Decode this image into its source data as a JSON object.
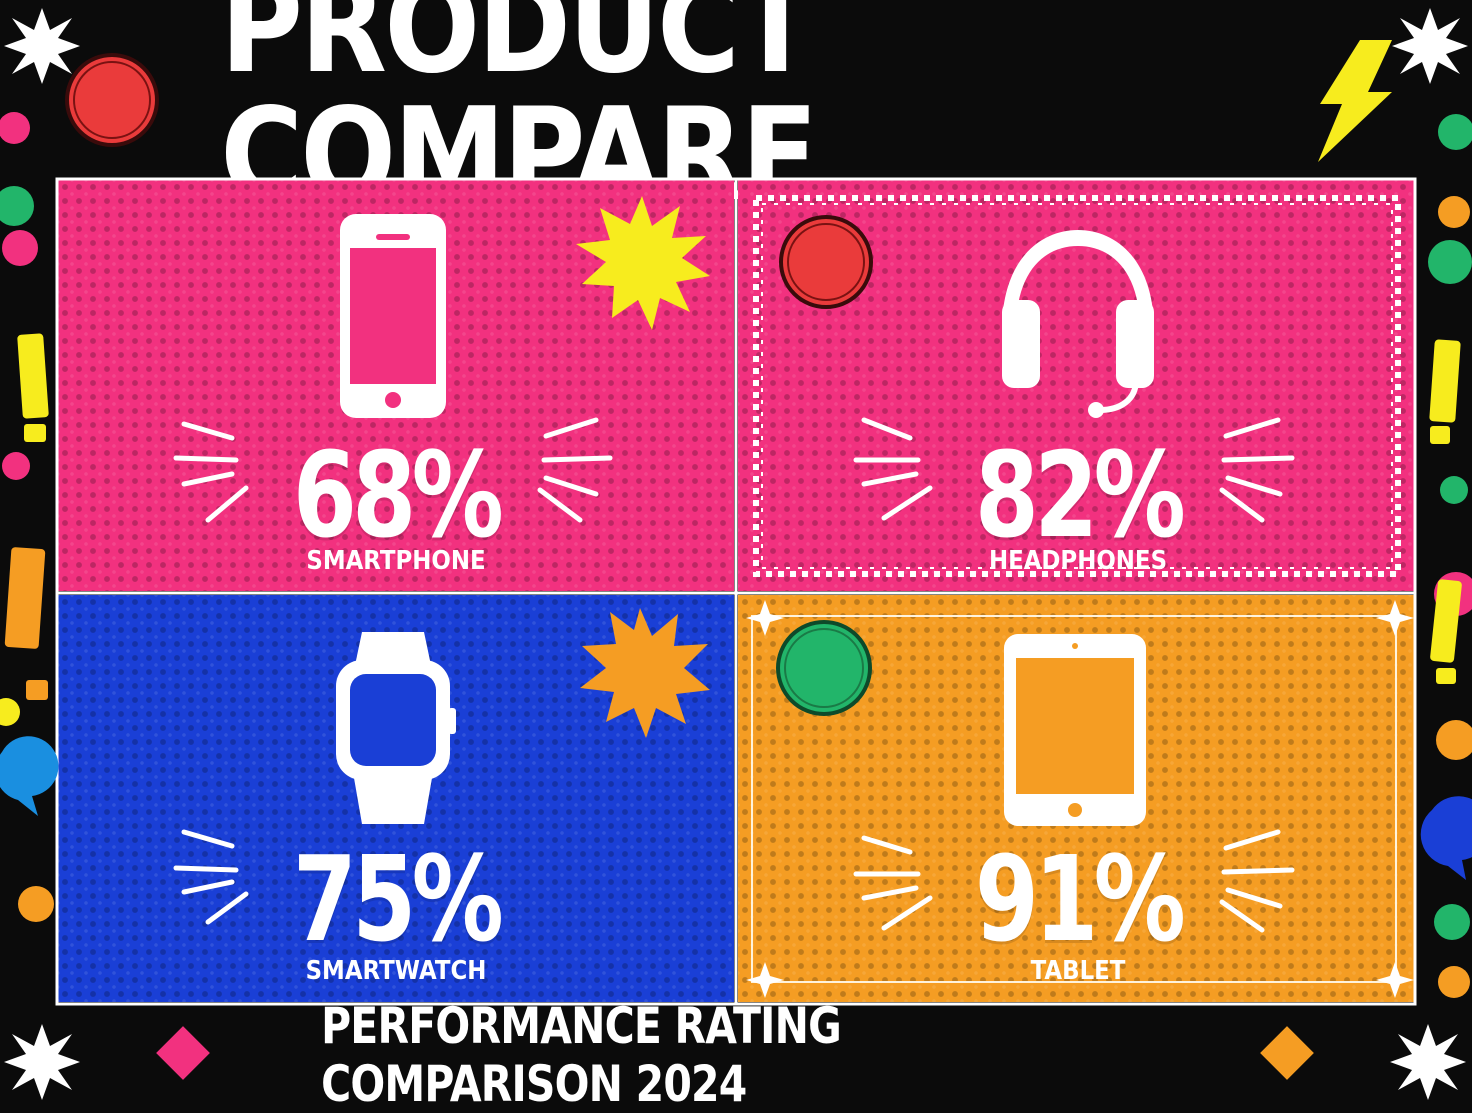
{
  "title": "PRODUCT COMPARE",
  "subtitle": "PERFORMANCE RATING COMPARISON 2024",
  "colors": {
    "background": "#0b0b0b",
    "pink": "#f2317f",
    "blue": "#1a3fd6",
    "orange": "#f59d23",
    "yellow": "#f7ec1e",
    "green": "#22b56a",
    "red": "#ea3b3b",
    "white": "#ffffff"
  },
  "chart_data": {
    "type": "table",
    "categories": [
      "SMARTPHONE",
      "HEADPHONES",
      "SMARTWATCH",
      "TABLET"
    ],
    "values": [
      68,
      82,
      75,
      91
    ],
    "value_labels": [
      "68%",
      "82%",
      "75%",
      "91%"
    ],
    "title": "PRODUCT COMPARE",
    "subtitle": "PERFORMANCE RATING COMPARISON 2024"
  },
  "products": [
    {
      "name": "SMARTPHONE",
      "value": "68%",
      "icon": "smartphone-icon",
      "color": "#f2317f"
    },
    {
      "name": "HEADPHONES",
      "value": "82%",
      "icon": "headphones-icon",
      "color": "#f2317f"
    },
    {
      "name": "SMARTWATCH",
      "value": "75%",
      "icon": "smartwatch-icon",
      "color": "#1a3fd6"
    },
    {
      "name": "TABLET",
      "value": "91%",
      "icon": "tablet-icon",
      "color": "#f59d23"
    }
  ]
}
